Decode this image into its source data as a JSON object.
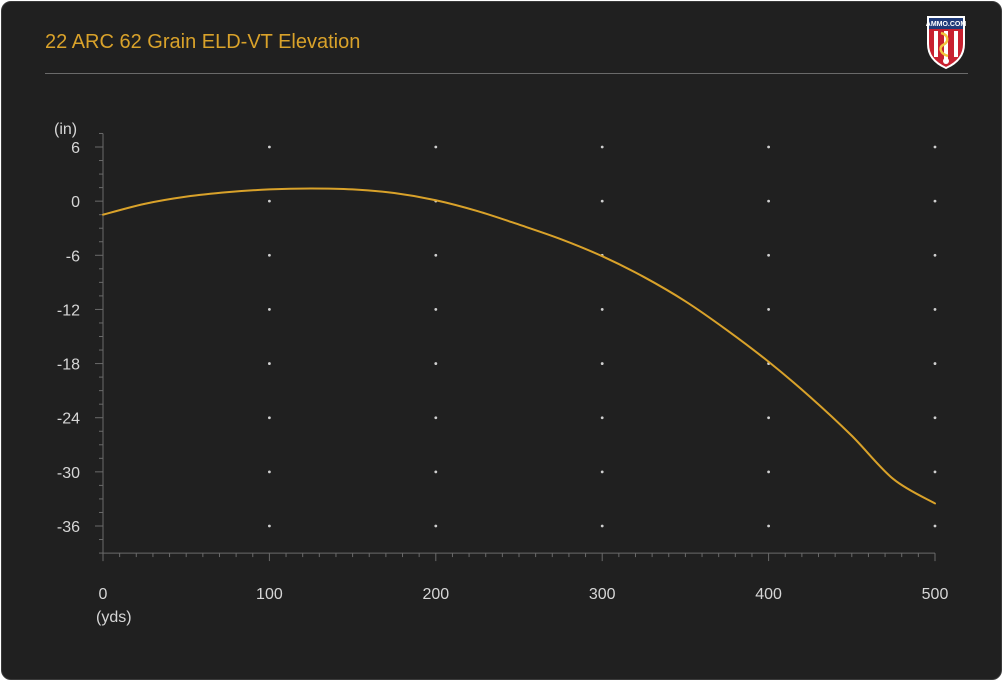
{
  "colors": {
    "background": "#202020",
    "title": "#d9a22a",
    "line": "#d9a22a",
    "axis": "#6a6a6a",
    "text": "#d6d6d6",
    "grid_dot": "#cfcfcf",
    "logo_red": "#c8202f",
    "logo_blue": "#1f3a78"
  },
  "logo": {
    "text": "AMMO.COM"
  },
  "chart_data": {
    "type": "line",
    "title": "22 ARC 62 Grain ELD-VT Elevation",
    "xlabel": "(yds)",
    "ylabel": "(in)",
    "xlim": [
      0,
      500
    ],
    "ylim": [
      -39,
      7.5
    ],
    "grid": "dots",
    "x_ticks": [
      0,
      100,
      200,
      300,
      400,
      500
    ],
    "y_ticks": [
      6,
      0,
      -6,
      -12,
      -18,
      -24,
      -30,
      -36
    ],
    "series": [
      {
        "color": "#d9a22a",
        "x": [
          0,
          25,
          50,
          75,
          100,
          125,
          150,
          175,
          200,
          225,
          250,
          275,
          300,
          325,
          350,
          375,
          400,
          425,
          450,
          475,
          500
        ],
        "y": [
          -1.5,
          -0.3,
          0.5,
          1.0,
          1.3,
          1.4,
          1.3,
          0.9,
          0.1,
          -1.1,
          -2.6,
          -4.2,
          -6.1,
          -8.4,
          -11.1,
          -14.3,
          -17.8,
          -21.7,
          -26.0,
          -30.8,
          -33.5
        ]
      }
    ]
  }
}
